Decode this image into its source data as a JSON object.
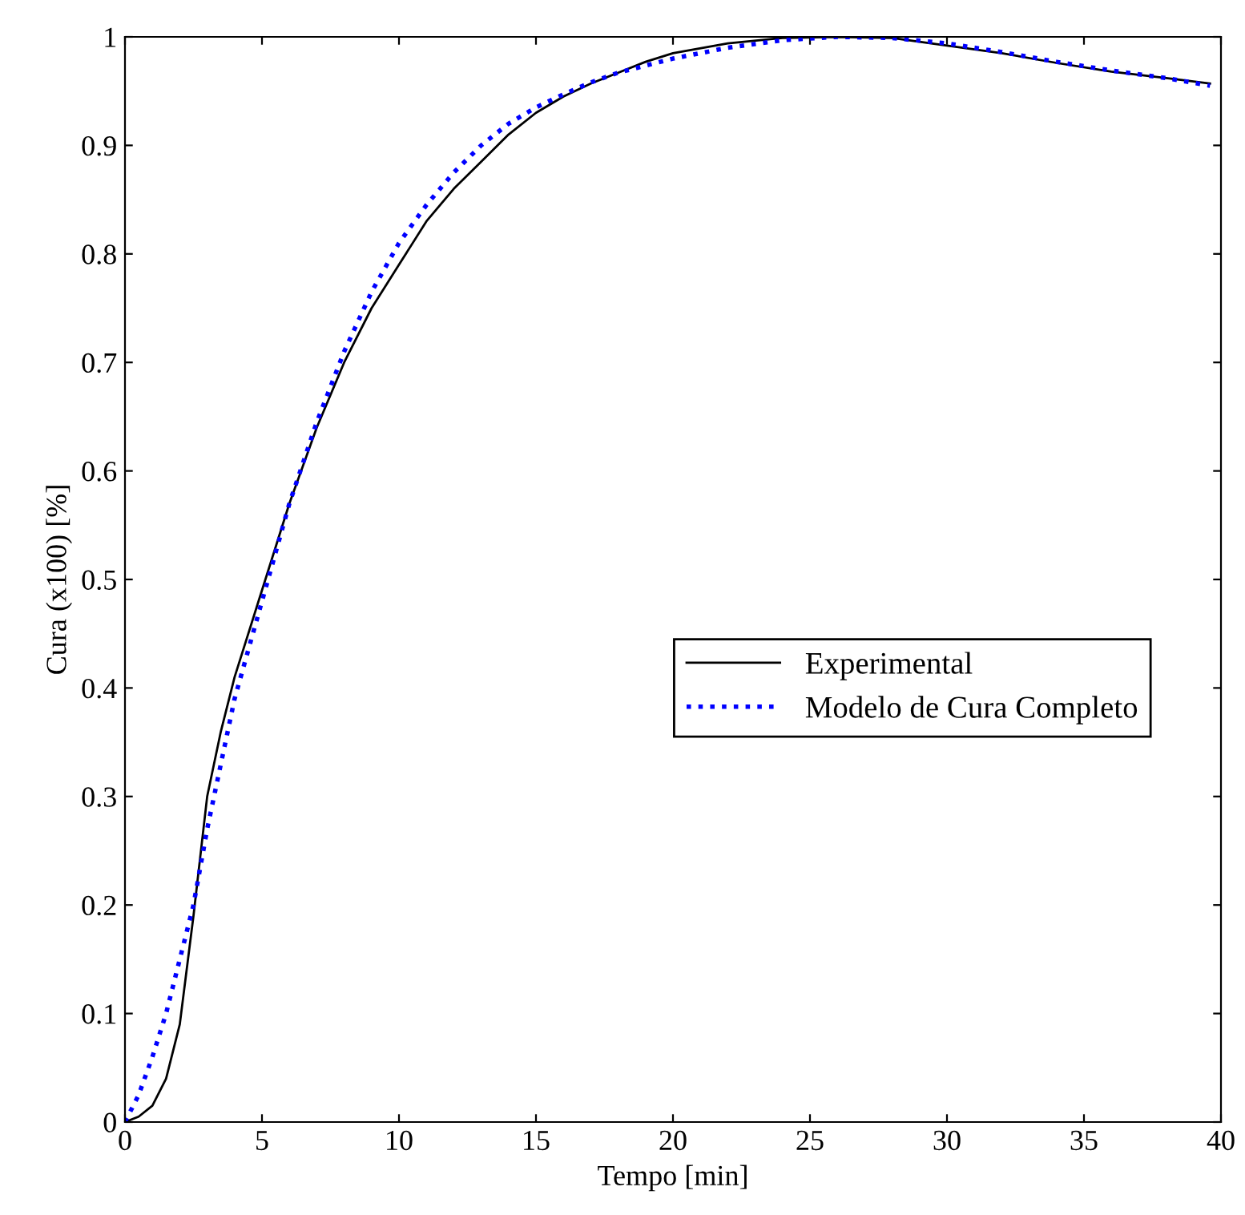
{
  "chart_data": {
    "type": "line",
    "xlabel": "Tempo [min]",
    "ylabel": "Cura (x100) [%]",
    "xlim": [
      0,
      40
    ],
    "ylim": [
      0,
      1
    ],
    "xticks": [
      0,
      5,
      10,
      15,
      20,
      25,
      30,
      35,
      40
    ],
    "yticks": [
      0,
      0.1,
      0.2,
      0.3,
      0.4,
      0.5,
      0.6,
      0.7,
      0.8,
      0.9,
      1
    ],
    "grid": false,
    "legend": "right",
    "series": [
      {
        "name": "Experimental",
        "color": "#000000",
        "line_style": "solid",
        "x": [
          0,
          0.5,
          1,
          1.5,
          2,
          2.5,
          3,
          3.5,
          4,
          5,
          6,
          7,
          8,
          9,
          10,
          11,
          12,
          13,
          14,
          15,
          16,
          17,
          18,
          19,
          20,
          22,
          24,
          26,
          28,
          30,
          32,
          34,
          36,
          38,
          39.6
        ],
        "values": [
          0,
          0.005,
          0.015,
          0.04,
          0.09,
          0.19,
          0.3,
          0.36,
          0.41,
          0.49,
          0.57,
          0.64,
          0.7,
          0.75,
          0.79,
          0.83,
          0.86,
          0.885,
          0.91,
          0.93,
          0.945,
          0.957,
          0.967,
          0.977,
          0.985,
          0.994,
          0.999,
          1.0,
          0.999,
          0.992,
          0.985,
          0.976,
          0.968,
          0.962,
          0.957
        ]
      },
      {
        "name": "Modelo de Cura Completo",
        "color": "#0000ff",
        "line_style": "dotted",
        "x": [
          0,
          0.5,
          1,
          1.5,
          2,
          2.5,
          3,
          3.5,
          4,
          5,
          6,
          7,
          8,
          9,
          10,
          11,
          12,
          13,
          14,
          15,
          16,
          17,
          18,
          20,
          22,
          24,
          26,
          28,
          30,
          32,
          34,
          36,
          38,
          39.6
        ],
        "values": [
          0,
          0.025,
          0.06,
          0.1,
          0.15,
          0.2,
          0.27,
          0.33,
          0.39,
          0.48,
          0.57,
          0.645,
          0.71,
          0.765,
          0.81,
          0.845,
          0.875,
          0.9,
          0.92,
          0.935,
          0.947,
          0.958,
          0.967,
          0.98,
          0.99,
          0.997,
          1.0,
          0.999,
          0.994,
          0.986,
          0.977,
          0.969,
          0.962,
          0.955
        ]
      }
    ]
  }
}
